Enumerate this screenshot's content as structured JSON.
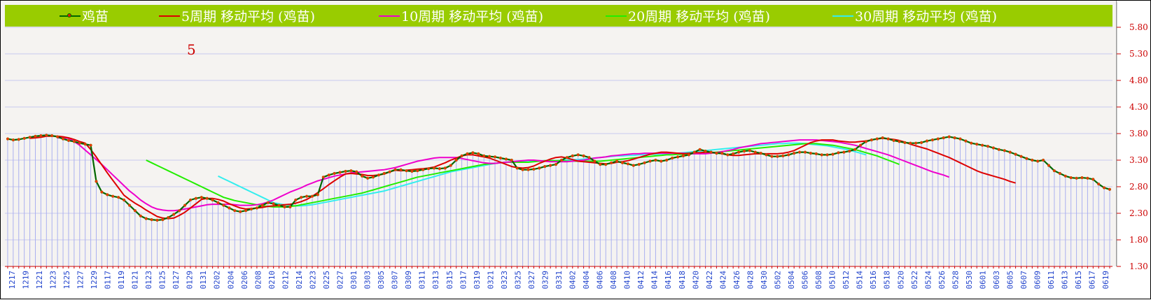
{
  "chart_data": {
    "type": "line",
    "legend": [
      {
        "name": "鸡苗",
        "color": "#006600",
        "marker": true
      },
      {
        "name": "5周期  移动平均 (鸡苗)",
        "color": "#dd0000"
      },
      {
        "name": "10周期  移动平均 (鸡苗)",
        "color": "#ee00cc"
      },
      {
        "name": "20周期  移动平均 (鸡苗)",
        "color": "#22ee00"
      },
      {
        "name": "30周期  移动平均 (鸡苗)",
        "color": "#33eeee"
      }
    ],
    "annotation": "5",
    "ylim": [
      1.3,
      5.8
    ],
    "yticks": [
      "5.80",
      "5.30",
      "4.80",
      "4.30",
      "3.80",
      "3.30",
      "2.80",
      "2.30",
      "1.80",
      "1.30"
    ],
    "xticks": [
      "1217",
      "1219",
      "1221",
      "1223",
      "1225",
      "1227",
      "1229",
      "0117",
      "0119",
      "0121",
      "0123",
      "0125",
      "0127",
      "0129",
      "0131",
      "0202",
      "0204",
      "0206",
      "0208",
      "0210",
      "0212",
      "0214",
      "0223",
      "0225",
      "0227",
      "0301",
      "0303",
      "0305",
      "0307",
      "0309",
      "0311",
      "0313",
      "0315",
      "0317",
      "0319",
      "0321",
      "0323",
      "0325",
      "0327",
      "0329",
      "0331",
      "0402",
      "0404",
      "0406",
      "0408",
      "0410",
      "0412",
      "0414",
      "0416",
      "0418",
      "0420",
      "0422",
      "0424",
      "0426",
      "0428",
      "0430",
      "0502",
      "0504",
      "0506",
      "0508",
      "0510",
      "0512",
      "0514",
      "0516",
      "0518",
      "0520",
      "0522",
      "0524",
      "0526",
      "0528",
      "0530",
      "0601",
      "0603",
      "0605",
      "0607",
      "0609",
      "0611",
      "0613",
      "0615",
      "0617",
      "0619"
    ],
    "series": [
      {
        "name": "鸡苗",
        "values": [
          3.7,
          3.68,
          3.69,
          3.71,
          3.73,
          3.75,
          3.76,
          3.77,
          3.76,
          3.74,
          3.7,
          3.67,
          3.65,
          3.62,
          3.6,
          3.58,
          2.9,
          2.7,
          2.65,
          2.62,
          2.6,
          2.55,
          2.45,
          2.35,
          2.25,
          2.2,
          2.18,
          2.17,
          2.18,
          2.22,
          2.28,
          2.35,
          2.45,
          2.55,
          2.58,
          2.6,
          2.58,
          2.55,
          2.5,
          2.45,
          2.4,
          2.35,
          2.33,
          2.35,
          2.38,
          2.4,
          2.45,
          2.5,
          2.48,
          2.45,
          2.42,
          2.42,
          2.55,
          2.6,
          2.62,
          2.62,
          2.65,
          2.98,
          3.02,
          3.05,
          3.07,
          3.09,
          3.1,
          3.08,
          3.0,
          2.96,
          2.98,
          3.02,
          3.05,
          3.08,
          3.12,
          3.12,
          3.1,
          3.09,
          3.1,
          3.12,
          3.14,
          3.15,
          3.14,
          3.15,
          3.2,
          3.3,
          3.38,
          3.42,
          3.44,
          3.42,
          3.38,
          3.37,
          3.36,
          3.34,
          3.32,
          3.3,
          3.15,
          3.12,
          3.12,
          3.13,
          3.15,
          3.18,
          3.2,
          3.22,
          3.3,
          3.35,
          3.38,
          3.4,
          3.38,
          3.35,
          3.28,
          3.22,
          3.22,
          3.25,
          3.28,
          3.25,
          3.23,
          3.2,
          3.22,
          3.25,
          3.28,
          3.3,
          3.28,
          3.3,
          3.34,
          3.36,
          3.38,
          3.4,
          3.45,
          3.5,
          3.47,
          3.45,
          3.43,
          3.43,
          3.4,
          3.42,
          3.45,
          3.47,
          3.48,
          3.45,
          3.43,
          3.4,
          3.37,
          3.37,
          3.38,
          3.4,
          3.43,
          3.45,
          3.45,
          3.43,
          3.42,
          3.4,
          3.4,
          3.41,
          3.44,
          3.45,
          3.47,
          3.5,
          3.58,
          3.65,
          3.68,
          3.7,
          3.72,
          3.7,
          3.67,
          3.65,
          3.63,
          3.62,
          3.62,
          3.63,
          3.66,
          3.68,
          3.7,
          3.72,
          3.74,
          3.72,
          3.7,
          3.66,
          3.62,
          3.6,
          3.58,
          3.56,
          3.53,
          3.5,
          3.48,
          3.45,
          3.41,
          3.37,
          3.33,
          3.3,
          3.28,
          3.3,
          3.2,
          3.1,
          3.05,
          3.0,
          2.97,
          2.96,
          2.97,
          2.96,
          2.94,
          2.85,
          2.78,
          2.75
        ]
      },
      {
        "name": "5周期  移动平均 (鸡苗)",
        "start": 4,
        "values": [
          3.71,
          3.72,
          3.73,
          3.75,
          3.75,
          3.75,
          3.74,
          3.72,
          3.69,
          3.65,
          3.62,
          3.5,
          3.36,
          3.21,
          3.06,
          2.92,
          2.78,
          2.64,
          2.56,
          2.49,
          2.43,
          2.36,
          2.3,
          2.24,
          2.21,
          2.2,
          2.21,
          2.26,
          2.32,
          2.4,
          2.48,
          2.56,
          2.58,
          2.58,
          2.56,
          2.53,
          2.48,
          2.44,
          2.4,
          2.38,
          2.39,
          2.4,
          2.41,
          2.43,
          2.44,
          2.45,
          2.46,
          2.47,
          2.49,
          2.52,
          2.56,
          2.62,
          2.69,
          2.76,
          2.84,
          2.91,
          2.98,
          3.04,
          3.05,
          3.04,
          3.03,
          3.01,
          3.01,
          3.02,
          3.04,
          3.08,
          3.11,
          3.1,
          3.11,
          3.12,
          3.13,
          3.14,
          3.15,
          3.17,
          3.21,
          3.25,
          3.3,
          3.34,
          3.38,
          3.4,
          3.4,
          3.38,
          3.36,
          3.34,
          3.3,
          3.26,
          3.22,
          3.18,
          3.16,
          3.15,
          3.16,
          3.19,
          3.24,
          3.28,
          3.32,
          3.35,
          3.36,
          3.34,
          3.31,
          3.28,
          3.27,
          3.26,
          3.25,
          3.24,
          3.23,
          3.24,
          3.26,
          3.27,
          3.29,
          3.32,
          3.35,
          3.38,
          3.41,
          3.43,
          3.45,
          3.45,
          3.44,
          3.43,
          3.42,
          3.43,
          3.44,
          3.44,
          3.45,
          3.45,
          3.44,
          3.42,
          3.4,
          3.39,
          3.39,
          3.4,
          3.41,
          3.42,
          3.42,
          3.42,
          3.42,
          3.42,
          3.43,
          3.45,
          3.48,
          3.53,
          3.58,
          3.63,
          3.66,
          3.68,
          3.68,
          3.68,
          3.66,
          3.65,
          3.64,
          3.64,
          3.65,
          3.66,
          3.68,
          3.7,
          3.71,
          3.7,
          3.69,
          3.67,
          3.64,
          3.6,
          3.57,
          3.54,
          3.51,
          3.47,
          3.43,
          3.39,
          3.35,
          3.3,
          3.25,
          3.2,
          3.15,
          3.1,
          3.06,
          3.03,
          3.0,
          2.97,
          2.94,
          2.9,
          2.87
        ]
      },
      {
        "name": "10周期  移动平均 (鸡苗)",
        "start": 9,
        "values": [
          3.72,
          3.72,
          3.71,
          3.65,
          3.58,
          3.49,
          3.4,
          3.31,
          3.22,
          3.12,
          3.02,
          2.92,
          2.82,
          2.72,
          2.64,
          2.55,
          2.48,
          2.42,
          2.38,
          2.36,
          2.35,
          2.35,
          2.36,
          2.38,
          2.4,
          2.42,
          2.44,
          2.46,
          2.47,
          2.47,
          2.47,
          2.47,
          2.46,
          2.45,
          2.45,
          2.45,
          2.46,
          2.48,
          2.51,
          2.55,
          2.6,
          2.65,
          2.7,
          2.74,
          2.78,
          2.83,
          2.87,
          2.91,
          2.94,
          2.97,
          3.0,
          3.02,
          3.04,
          3.06,
          3.07,
          3.08,
          3.09,
          3.1,
          3.11,
          3.12,
          3.14,
          3.16,
          3.19,
          3.22,
          3.25,
          3.28,
          3.3,
          3.32,
          3.34,
          3.35,
          3.35,
          3.35,
          3.35,
          3.33,
          3.31,
          3.29,
          3.27,
          3.25,
          3.24,
          3.24,
          3.25,
          3.26,
          3.27,
          3.28,
          3.29,
          3.3,
          3.3,
          3.29,
          3.28,
          3.27,
          3.27,
          3.27,
          3.27,
          3.28,
          3.29,
          3.3,
          3.32,
          3.34,
          3.35,
          3.36,
          3.38,
          3.39,
          3.4,
          3.41,
          3.42,
          3.42,
          3.43,
          3.43,
          3.43,
          3.43,
          3.43,
          3.43,
          3.43,
          3.43,
          3.42,
          3.42,
          3.42,
          3.42,
          3.43,
          3.44,
          3.46,
          3.48,
          3.5,
          3.53,
          3.55,
          3.57,
          3.59,
          3.61,
          3.62,
          3.63,
          3.64,
          3.65,
          3.66,
          3.67,
          3.68,
          3.68,
          3.68,
          3.68,
          3.67,
          3.66,
          3.65,
          3.64,
          3.62,
          3.6,
          3.58,
          3.55,
          3.52,
          3.49,
          3.46,
          3.43,
          3.4,
          3.36,
          3.32,
          3.28,
          3.24,
          3.2,
          3.16,
          3.12,
          3.08,
          3.05,
          3.02,
          2.98
        ]
      },
      {
        "name": "20周期  移动平均 (鸡苗)",
        "start": 25,
        "values": [
          3.3,
          3.25,
          3.2,
          3.15,
          3.1,
          3.05,
          3.0,
          2.95,
          2.9,
          2.85,
          2.8,
          2.75,
          2.7,
          2.65,
          2.6,
          2.57,
          2.54,
          2.52,
          2.5,
          2.48,
          2.46,
          2.44,
          2.43,
          2.42,
          2.42,
          2.42,
          2.43,
          2.44,
          2.46,
          2.48,
          2.5,
          2.52,
          2.54,
          2.56,
          2.58,
          2.6,
          2.62,
          2.64,
          2.66,
          2.68,
          2.71,
          2.74,
          2.77,
          2.8,
          2.83,
          2.86,
          2.89,
          2.92,
          2.95,
          2.98,
          3.0,
          3.02,
          3.04,
          3.06,
          3.08,
          3.1,
          3.12,
          3.14,
          3.16,
          3.18,
          3.2,
          3.22,
          3.23,
          3.24,
          3.25,
          3.26,
          3.26,
          3.26,
          3.26,
          3.26,
          3.27,
          3.28,
          3.29,
          3.29,
          3.29,
          3.29,
          3.28,
          3.28,
          3.28,
          3.28,
          3.28,
          3.28,
          3.28,
          3.29,
          3.3,
          3.31,
          3.32,
          3.33,
          3.34,
          3.35,
          3.36,
          3.37,
          3.38,
          3.39,
          3.4,
          3.4,
          3.41,
          3.41,
          3.42,
          3.42,
          3.43,
          3.43,
          3.44,
          3.45,
          3.46,
          3.47,
          3.48,
          3.49,
          3.5,
          3.51,
          3.52,
          3.53,
          3.54,
          3.55,
          3.56,
          3.57,
          3.58,
          3.59,
          3.6,
          3.61,
          3.61,
          3.61,
          3.6,
          3.59,
          3.58,
          3.56,
          3.54,
          3.52,
          3.5,
          3.47,
          3.44,
          3.41,
          3.38,
          3.34,
          3.3,
          3.26,
          3.22
        ]
      },
      {
        "name": "30周期  移动平均 (鸡苗)",
        "start": 38,
        "values": [
          3.0,
          2.95,
          2.9,
          2.85,
          2.8,
          2.75,
          2.7,
          2.65,
          2.6,
          2.55,
          2.5,
          2.48,
          2.46,
          2.45,
          2.44,
          2.44,
          2.45,
          2.46,
          2.48,
          2.5,
          2.52,
          2.54,
          2.56,
          2.58,
          2.6,
          2.62,
          2.64,
          2.66,
          2.68,
          2.7,
          2.72,
          2.75,
          2.78,
          2.81,
          2.84,
          2.87,
          2.9,
          2.93,
          2.96,
          2.99,
          3.02,
          3.05,
          3.08,
          3.1,
          3.12,
          3.14,
          3.16,
          3.18,
          3.2,
          3.22,
          3.24,
          3.25,
          3.26,
          3.27,
          3.27,
          3.27,
          3.27,
          3.28,
          3.28,
          3.28,
          3.29,
          3.29,
          3.3,
          3.3,
          3.31,
          3.31,
          3.32,
          3.33,
          3.34,
          3.35,
          3.36,
          3.37,
          3.38,
          3.38,
          3.39,
          3.39,
          3.4,
          3.4,
          3.41,
          3.41,
          3.42,
          3.42,
          3.43,
          3.43,
          3.44,
          3.45,
          3.46,
          3.47,
          3.48,
          3.49,
          3.5,
          3.51,
          3.52,
          3.53,
          3.54,
          3.55,
          3.56,
          3.57,
          3.58,
          3.59,
          3.6,
          3.61,
          3.61,
          3.62,
          3.62,
          3.62,
          3.61,
          3.6,
          3.59,
          3.58,
          3.57,
          3.55,
          3.53,
          3.51,
          3.49,
          3.46,
          3.43,
          3.4
        ]
      }
    ]
  }
}
